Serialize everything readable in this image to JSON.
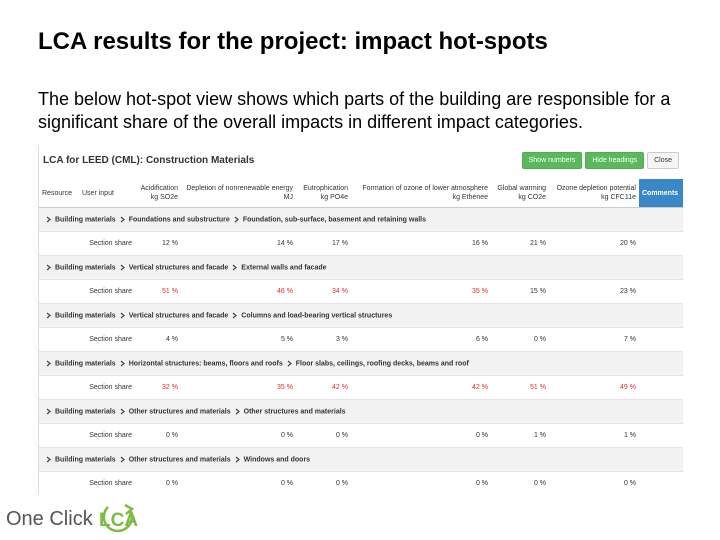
{
  "slide": {
    "title": "LCA results for the project: impact hot-spots",
    "body": "The below hot-spot view shows which parts of the building are responsible for a significant share of the overall impacts in different impact categories."
  },
  "panel": {
    "title": "LCA for LEED (CML): Construction Materials",
    "buttons": [
      "Show numbers",
      "Hide headings",
      "Close"
    ],
    "columns": [
      {
        "name": "Resource"
      },
      {
        "name": "User input"
      },
      {
        "name": "Acidification",
        "unit": "kg SO2e"
      },
      {
        "name": "Depletion of nonrenewable energy",
        "unit": "MJ"
      },
      {
        "name": "Eutrophication",
        "unit": "kg PO4e"
      },
      {
        "name": "Formation of ozone of lower atmosphere",
        "unit": "kg Ethenee"
      },
      {
        "name": "Global warming",
        "unit": "kg CO2e"
      },
      {
        "name": "Ozone depletion potential",
        "unit": "kg CFC11e"
      },
      {
        "name": "Comments"
      }
    ],
    "groups": [
      {
        "path": [
          "Building materials",
          "Foundations and substructure",
          "Foundation, sub-surface, basement and retaining walls"
        ],
        "label": "Section share",
        "shares": [
          "12 %",
          "14 %",
          "17 %",
          "16 %",
          "21 %",
          "20 %"
        ],
        "highlighted": [
          false,
          false,
          false,
          false,
          false,
          false
        ]
      },
      {
        "path": [
          "Building materials",
          "Vertical structures and facade",
          "External walls and facade"
        ],
        "label": "Section share",
        "shares": [
          "51 %",
          "46 %",
          "34 %",
          "35 %",
          "15 %",
          "23 %"
        ],
        "highlighted": [
          true,
          true,
          true,
          true,
          false,
          false
        ]
      },
      {
        "path": [
          "Building materials",
          "Vertical structures and facade",
          "Columns and load-bearing vertical structures"
        ],
        "label": "Section share",
        "shares": [
          "4 %",
          "5 %",
          "3 %",
          "6 %",
          "0 %",
          "7 %"
        ],
        "highlighted": [
          false,
          false,
          false,
          false,
          false,
          false
        ]
      },
      {
        "path": [
          "Building materials",
          "Horizontal structures: beams, floors and roofs",
          "Floor slabs, ceilings, roofing decks, beams and roof"
        ],
        "label": "Section share",
        "shares": [
          "32 %",
          "35 %",
          "42 %",
          "42 %",
          "51 %",
          "49 %"
        ],
        "highlighted": [
          true,
          true,
          true,
          true,
          true,
          true
        ]
      },
      {
        "path": [
          "Building materials",
          "Other structures and materials",
          "Other structures and materials"
        ],
        "label": "Section share",
        "shares": [
          "0 %",
          "0 %",
          "0 %",
          "0 %",
          "1 %",
          "1 %"
        ],
        "highlighted": [
          false,
          false,
          false,
          false,
          false,
          false
        ]
      },
      {
        "path": [
          "Building materials",
          "Other structures and materials",
          "Windows and doors"
        ],
        "label": "Section share",
        "shares": [
          "0 %",
          "0 %",
          "0 %",
          "0 %",
          "0 %",
          "0 %"
        ],
        "highlighted": [
          false,
          false,
          false,
          false,
          false,
          false
        ]
      }
    ]
  },
  "logo": {
    "text": "One Click",
    "accent": "LCA"
  }
}
